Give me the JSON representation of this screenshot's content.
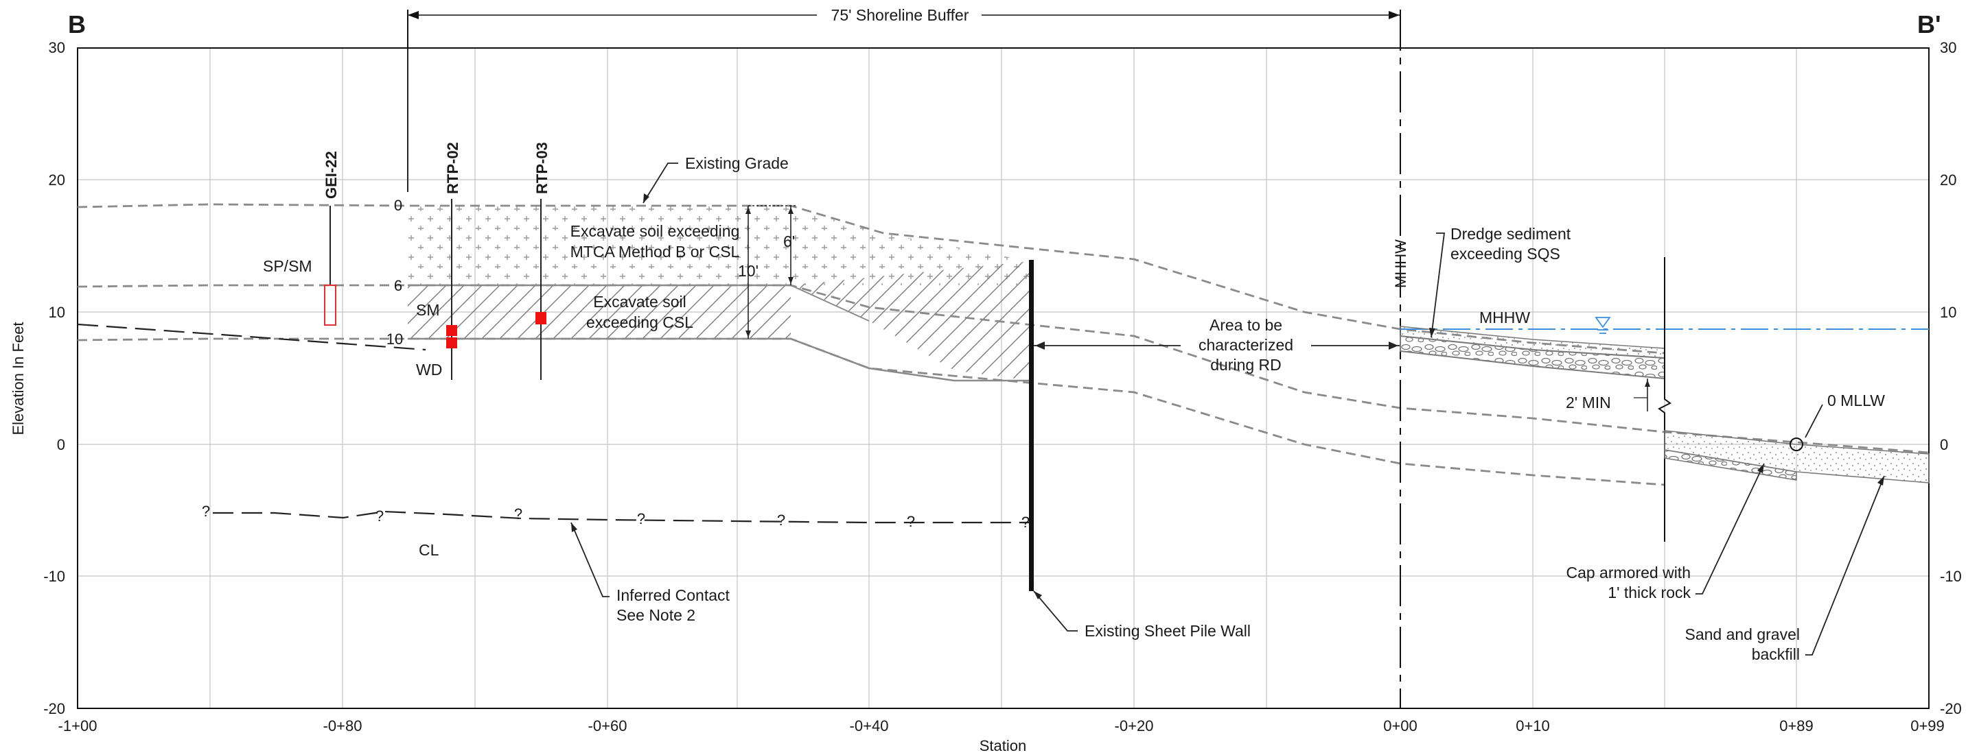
{
  "section": {
    "start_label": "B",
    "end_label": "B'"
  },
  "axes": {
    "y_title": "Elevation In Feet",
    "x_title": "Station",
    "y_ticks_left": [
      "30",
      "20",
      "10",
      "0",
      "-10",
      "-20"
    ],
    "y_ticks_right": [
      "30",
      "20",
      "10",
      "0",
      "-10",
      "-20"
    ],
    "x_ticks": [
      "-1+00",
      "-0+80",
      "-0+60",
      "-0+40",
      "-0+20",
      "0+00",
      "0+10",
      "0+89",
      "0+99"
    ]
  },
  "buffer": {
    "label": "75' Shoreline Buffer"
  },
  "borings": {
    "gei22": "GEI-22",
    "rtp02": "RTP-02",
    "rtp03": "RTP-03"
  },
  "depths": {
    "d0": "0",
    "d6": "6",
    "d10": "10"
  },
  "dimensions": {
    "six_ft": "6'",
    "ten_ft": "10'",
    "two_min": "2' MIN"
  },
  "soils": {
    "sp_sm": "SP/SM",
    "sm": "SM",
    "cl": "CL",
    "wd": "WD"
  },
  "question_marks": [
    "?",
    "?",
    "?",
    "?",
    "?",
    "?",
    "?"
  ],
  "annotations": {
    "existing_grade": "Existing Grade",
    "excavate_mtca": [
      "Excavate soil exceeding",
      "MTCA Method B or CSL"
    ],
    "excavate_csl": [
      "Excavate soil",
      "exceeding CSL"
    ],
    "area_rd": [
      "Area to be",
      "characterized",
      "during RD"
    ],
    "dredge": [
      "Dredge sediment",
      "exceeding SQS"
    ],
    "inferred": [
      "Inferred Contact",
      "See Note 2"
    ],
    "sheet_pile": "Existing Sheet Pile Wall",
    "cap": [
      "Cap armored with",
      "1' thick rock"
    ],
    "sand": [
      "Sand and gravel",
      "backfill"
    ],
    "mhhw_vertical": "MHHW",
    "mhhw_water": "MHHW",
    "mllw": "0 MLLW"
  },
  "colors": {
    "water": "#3d8fe0",
    "sample": "#ee1111",
    "boring_box": "#e03030"
  }
}
